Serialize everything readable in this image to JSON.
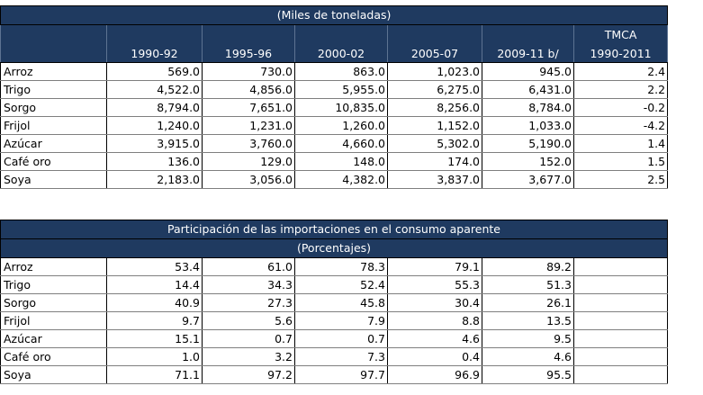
{
  "table1": {
    "title": "(Miles de toneladas)",
    "headers": [
      "",
      "1990-92",
      "1995-96",
      "2000-02",
      "2005-07",
      "2009-11 b/",
      "TMCA"
    ],
    "headers_top": [
      "",
      "",
      "",
      "",
      "",
      "",
      "TMCA"
    ],
    "headers_bottom": [
      "",
      "1990-92",
      "1995-96",
      "2000-02",
      "2005-07",
      "2009-11 b/",
      "1990-2011"
    ],
    "rows": [
      {
        "label": "Arroz",
        "values": [
          "569.0",
          "730.0",
          "863.0",
          "1,023.0",
          "945.0",
          "2.4"
        ]
      },
      {
        "label": "Trigo",
        "values": [
          "4,522.0",
          "4,856.0",
          "5,955.0",
          "6,275.0",
          "6,431.0",
          "2.2"
        ]
      },
      {
        "label": "Sorgo",
        "values": [
          "8,794.0",
          "7,651.0",
          "10,835.0",
          "8,256.0",
          "8,784.0",
          "-0.2"
        ]
      },
      {
        "label": "Frijol",
        "values": [
          "1,240.0",
          "1,231.0",
          "1,260.0",
          "1,152.0",
          "1,033.0",
          "-4.2"
        ]
      },
      {
        "label": "Azúcar",
        "values": [
          "3,915.0",
          "3,760.0",
          "4,660.0",
          "5,302.0",
          "5,190.0",
          "1.4"
        ]
      },
      {
        "label": "Café oro",
        "values": [
          "136.0",
          "129.0",
          "148.0",
          "174.0",
          "152.0",
          "1.5"
        ]
      },
      {
        "label": "Soya",
        "values": [
          "2,183.0",
          "3,056.0",
          "4,382.0",
          "3,837.0",
          "3,677.0",
          "2.5"
        ]
      }
    ]
  },
  "table2": {
    "title": "Participación de las importaciones en el consumo aparente",
    "subtitle": "(Porcentajes)",
    "rows": [
      {
        "label": "Arroz",
        "values": [
          "53.4",
          "61.0",
          "78.3",
          "79.1",
          "89.2",
          ""
        ]
      },
      {
        "label": "Trigo",
        "values": [
          "14.4",
          "34.3",
          "52.4",
          "55.3",
          "51.3",
          ""
        ]
      },
      {
        "label": "Sorgo",
        "values": [
          "40.9",
          "27.3",
          "45.8",
          "30.4",
          "26.1",
          ""
        ]
      },
      {
        "label": "Frijol",
        "values": [
          "9.7",
          "5.6",
          "7.9",
          "8.8",
          "13.5",
          ""
        ]
      },
      {
        "label": "Azúcar",
        "values": [
          "15.1",
          "0.7",
          "0.7",
          "4.6",
          "9.5",
          ""
        ]
      },
      {
        "label": "Café oro",
        "values": [
          "1.0",
          "3.2",
          "7.3",
          "0.4",
          "4.6",
          ""
        ]
      },
      {
        "label": "Soya",
        "values": [
          "71.1",
          "97.2",
          "97.7",
          "96.9",
          "95.5",
          ""
        ]
      }
    ]
  }
}
